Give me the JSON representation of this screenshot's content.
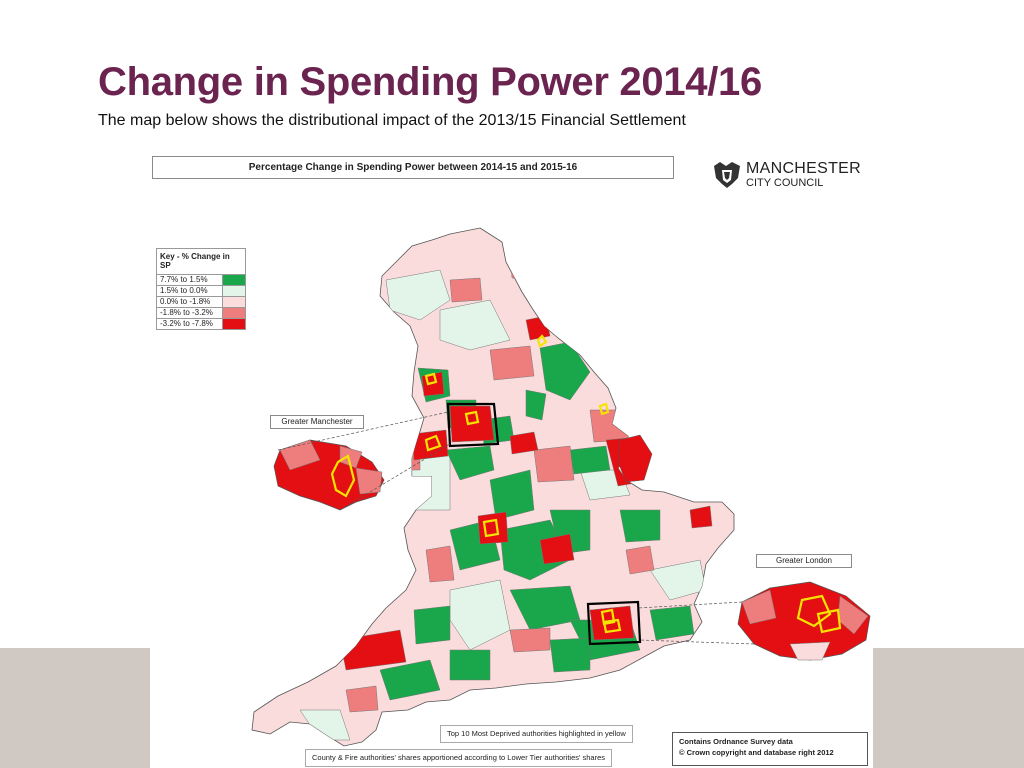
{
  "slide": {
    "title": "Change in Spending Power 2014/16",
    "subtitle": "The map below shows the distributional impact of the 2013/15 Financial Settlement"
  },
  "map": {
    "header": "Percentage Change in Spending Power between 2014-15 and 2015-16",
    "logo": {
      "line1": "MANCHESTER",
      "line2": "CITY COUNCIL"
    },
    "key": {
      "title": "Key - % Change in SP",
      "items": [
        {
          "label": "7.7% to  1.5%",
          "color": "#1aa64a"
        },
        {
          "label": "1.5% to  0.0%",
          "color": "#e2f5e8"
        },
        {
          "label": "0.0% to  -1.8%",
          "color": "#fbdcdc"
        },
        {
          "label": "-1.8% to  -3.2%",
          "color": "#ee7d7d"
        },
        {
          "label": "-3.2% to  -7.8%",
          "color": "#e30f12"
        }
      ]
    },
    "callouts": {
      "greater_manchester": "Greater Manchester",
      "greater_london": "Greater London"
    },
    "notes": {
      "deprived": "Top 10 Most Deprived authorities highlighted in yellow",
      "apportion": "County & Fire authorities' shares apportioned according to Lower Tier authorities' shares"
    },
    "copyright": {
      "line1": "Contains Ordnance Survey data",
      "line2": "© Crown copyright and database right 2012"
    },
    "highlight_color": "#f5e400"
  }
}
